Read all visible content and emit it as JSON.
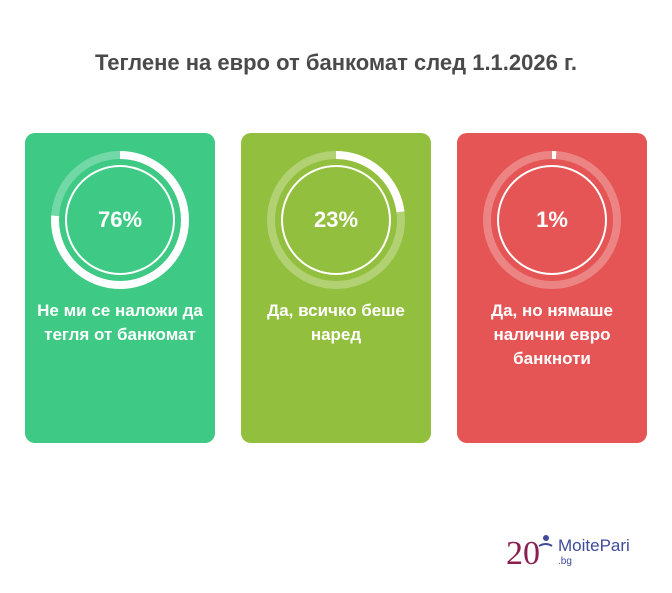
{
  "title": "Теглене на евро от банкомат след 1.1.2026 г.",
  "chart_data": {
    "type": "donut-cards",
    "title": "Теглене на евро от банкомат след 1.1.2026 г.",
    "items": [
      {
        "label": "Не ми се наложи да тегля от банкомат",
        "value": 76,
        "display": "76%",
        "color": "#3ec985"
      },
      {
        "label": "Да, всичко беше наред",
        "value": 23,
        "display": "23%",
        "color": "#93bf3e"
      },
      {
        "label": "Да, но нямаше налични евро банкноти",
        "value": 1,
        "display": "1%",
        "color": "#e55555"
      }
    ]
  },
  "logo": {
    "text": "MoitePari",
    "sub": ".bg",
    "number": "20",
    "color": "#8a1e4f",
    "accent": "#3f4a9a"
  }
}
